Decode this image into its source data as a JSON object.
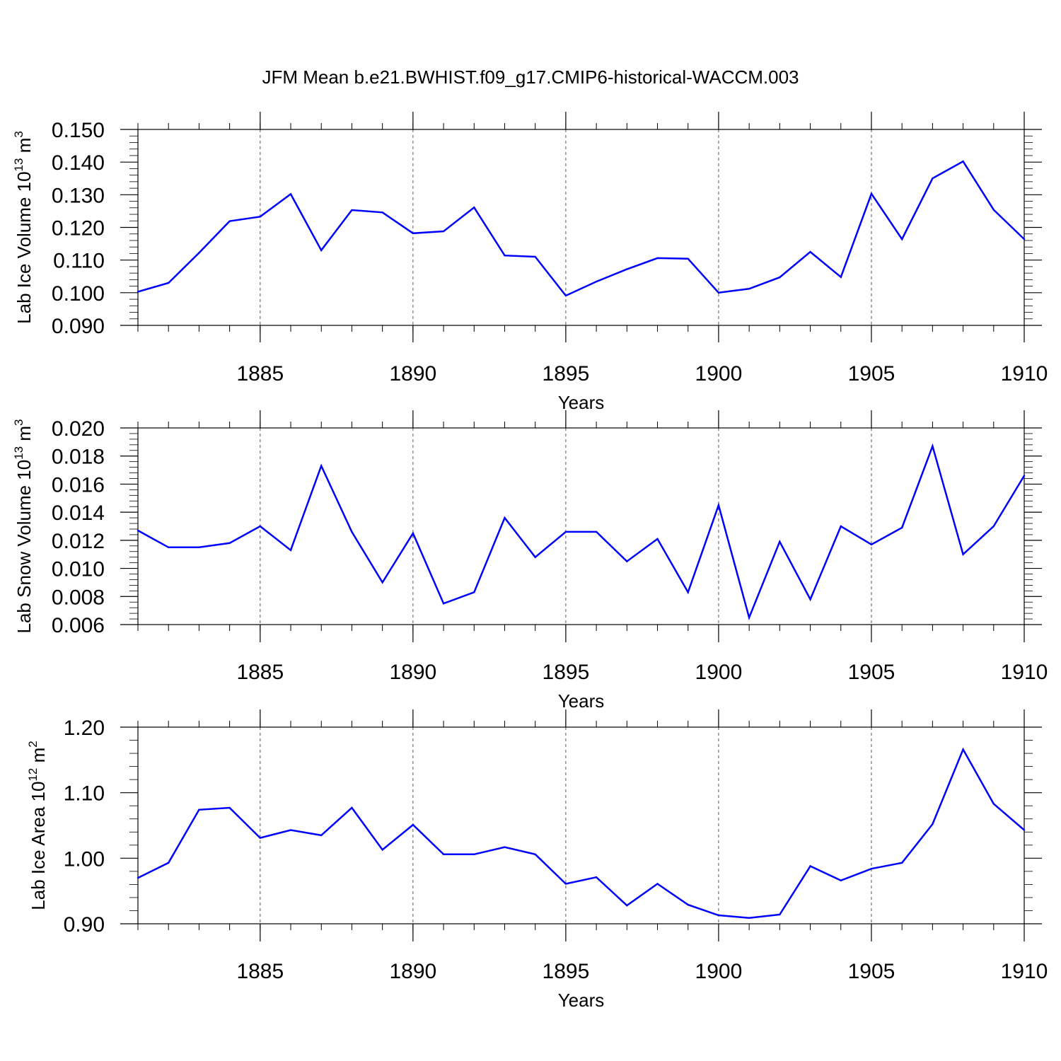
{
  "chart_data": {
    "title": "JFM Mean b.e21.BWHIST.f09_g17.CMIP6-historical-WACCM.003",
    "panels": [
      {
        "type": "line",
        "ylabel": {
          "text": "Lab Ice Volume 10",
          "exp": "13",
          "unit": "m",
          "unit_exp": "3"
        },
        "xlabel": "Years",
        "xlim": [
          1881,
          1910
        ],
        "ylim": [
          0.09,
          0.15
        ],
        "yticks": [
          "0.090",
          "0.100",
          "0.110",
          "0.120",
          "0.130",
          "0.140",
          "0.150"
        ],
        "xticks": [
          "1885",
          "1890",
          "1895",
          "1900",
          "1905",
          "1910"
        ],
        "grid_x": [
          1885,
          1890,
          1895,
          1900,
          1905
        ],
        "color": "#0000ff",
        "x": [
          1881,
          1882,
          1883,
          1884,
          1885,
          1886,
          1887,
          1888,
          1889,
          1890,
          1891,
          1892,
          1893,
          1894,
          1895,
          1896,
          1897,
          1898,
          1899,
          1900,
          1901,
          1902,
          1903,
          1904,
          1905,
          1906,
          1907,
          1908,
          1909,
          1910
        ],
        "y": [
          0.1003,
          0.103,
          0.1122,
          0.1219,
          0.1233,
          0.1302,
          0.113,
          0.1253,
          0.1246,
          0.1182,
          0.1188,
          0.1261,
          0.1114,
          0.111,
          0.0991,
          0.1034,
          0.1072,
          0.1106,
          0.1104,
          0.1,
          0.1012,
          0.1047,
          0.1125,
          0.1048,
          0.1303,
          0.1164,
          0.135,
          0.1402,
          0.1254,
          0.1164
        ]
      },
      {
        "type": "line",
        "ylabel": {
          "text": "Lab Snow Volume 10",
          "exp": "13",
          "unit": "m",
          "unit_exp": "3"
        },
        "xlabel": "Years",
        "xlim": [
          1881,
          1910
        ],
        "ylim": [
          0.006,
          0.02
        ],
        "yticks": [
          "0.006",
          "0.008",
          "0.010",
          "0.012",
          "0.014",
          "0.016",
          "0.018",
          "0.020"
        ],
        "xticks": [
          "1885",
          "1890",
          "1895",
          "1900",
          "1905",
          "1910"
        ],
        "grid_x": [
          1885,
          1890,
          1895,
          1900,
          1905
        ],
        "color": "#0000ff",
        "x": [
          1881,
          1882,
          1883,
          1884,
          1885,
          1886,
          1887,
          1888,
          1889,
          1890,
          1891,
          1892,
          1893,
          1894,
          1895,
          1896,
          1897,
          1898,
          1899,
          1900,
          1901,
          1902,
          1903,
          1904,
          1905,
          1906,
          1907,
          1908,
          1909,
          1910
        ],
        "y": [
          0.0127,
          0.0115,
          0.0115,
          0.0118,
          0.013,
          0.0113,
          0.0173,
          0.0126,
          0.009,
          0.0125,
          0.0075,
          0.0083,
          0.0136,
          0.0108,
          0.0126,
          0.0126,
          0.0105,
          0.0121,
          0.0083,
          0.0145,
          0.0065,
          0.0119,
          0.0078,
          0.013,
          0.0117,
          0.0129,
          0.0187,
          0.011,
          0.013,
          0.0166
        ]
      },
      {
        "type": "line",
        "ylabel": {
          "text": "Lab Ice Area 10",
          "exp": "12",
          "unit": "m",
          "unit_exp": "2"
        },
        "xlabel": "Years",
        "xlim": [
          1881,
          1910
        ],
        "ylim": [
          0.9,
          1.2
        ],
        "yticks": [
          "0.90",
          "1.00",
          "1.10",
          "1.20"
        ],
        "xticks": [
          "1885",
          "1890",
          "1895",
          "1900",
          "1905",
          "1910"
        ],
        "grid_x": [
          1885,
          1890,
          1895,
          1900,
          1905
        ],
        "color": "#0000ff",
        "x": [
          1881,
          1882,
          1883,
          1884,
          1885,
          1886,
          1887,
          1888,
          1889,
          1890,
          1891,
          1892,
          1893,
          1894,
          1895,
          1896,
          1897,
          1898,
          1899,
          1900,
          1901,
          1902,
          1903,
          1904,
          1905,
          1906,
          1907,
          1908,
          1909,
          1910
        ],
        "y": [
          0.97,
          0.993,
          1.074,
          1.077,
          1.031,
          1.043,
          1.035,
          1.077,
          1.013,
          1.051,
          1.006,
          1.006,
          1.017,
          1.006,
          0.961,
          0.971,
          0.928,
          0.961,
          0.929,
          0.913,
          0.909,
          0.914,
          0.988,
          0.966,
          0.984,
          0.993,
          1.052,
          1.166,
          1.083,
          1.043
        ]
      }
    ]
  }
}
